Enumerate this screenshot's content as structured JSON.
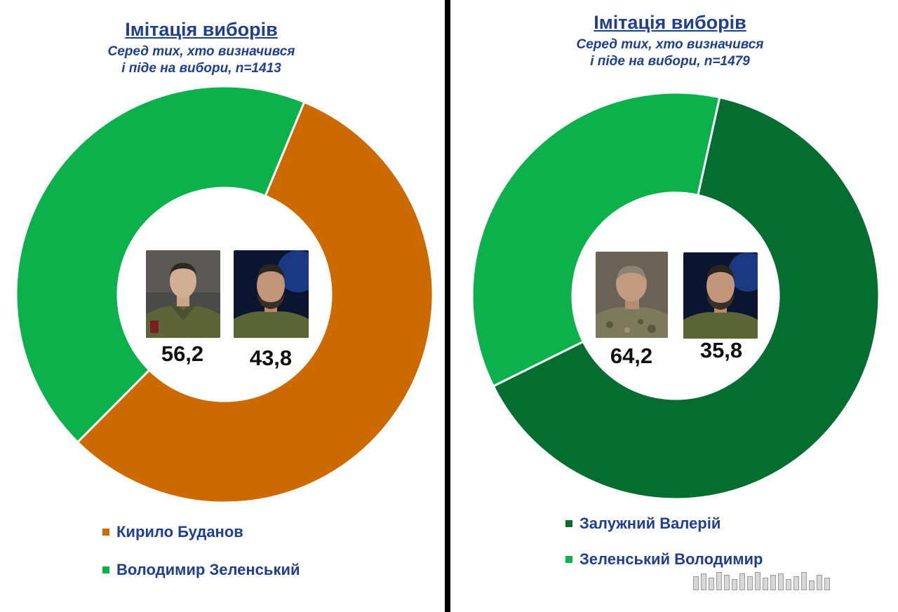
{
  "chart_data": [
    {
      "type": "pie",
      "title": "Імітація виборів",
      "subtitle": [
        "Серед тих, хто визначився",
        "і піде на вибори, n=1413"
      ],
      "categories": [
        "Кирило Буданов",
        "Володимир Зеленський"
      ],
      "values": [
        56.2,
        43.8
      ],
      "value_labels": [
        "56,2",
        "43,8"
      ],
      "colors": [
        "#cc6a00",
        "#0db14b"
      ],
      "legend_position": "bottom-left",
      "photos": [
        "portrait-budanov",
        "portrait-zelensky"
      ]
    },
    {
      "type": "pie",
      "title": "Імітація виборів",
      "subtitle": [
        "Серед тих, хто визначився",
        "і піде на вибори, n=1479"
      ],
      "categories": [
        "Залужний Валерій",
        "Зеленський Володимир"
      ],
      "values": [
        64.2,
        35.8
      ],
      "value_labels": [
        "64,2",
        "35,8"
      ],
      "colors": [
        "#056d30",
        "#0db14b"
      ],
      "legend_position": "bottom-left",
      "photos": [
        "portrait-zaluzhnyi",
        "portrait-zelensky"
      ]
    }
  ]
}
